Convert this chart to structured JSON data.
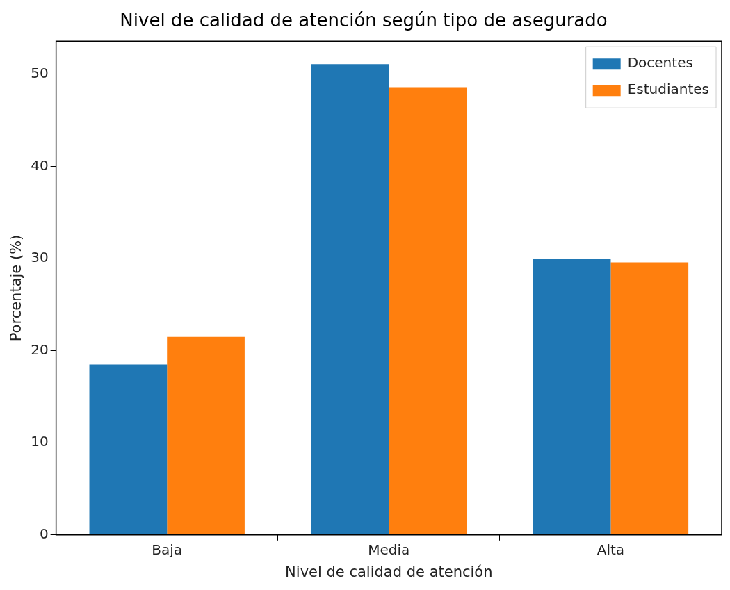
{
  "chart_data": {
    "type": "bar",
    "title": "Nivel de calidad de atención según tipo de asegurado",
    "xlabel": "Nivel de calidad de atención",
    "ylabel": "Porcentaje (%)",
    "categories": [
      "Baja",
      "Media",
      "Alta"
    ],
    "series": [
      {
        "name": "Docentes",
        "color": "#1f77b4",
        "values": [
          18.5,
          51.1,
          30.0
        ]
      },
      {
        "name": "Estudiantes",
        "color": "#ff7f0e",
        "values": [
          21.5,
          48.6,
          29.6
        ]
      }
    ],
    "ylim": [
      0,
      53.6
    ],
    "yticks": [
      0,
      10,
      20,
      30,
      40,
      50
    ],
    "grid": false,
    "legend": "top right"
  }
}
